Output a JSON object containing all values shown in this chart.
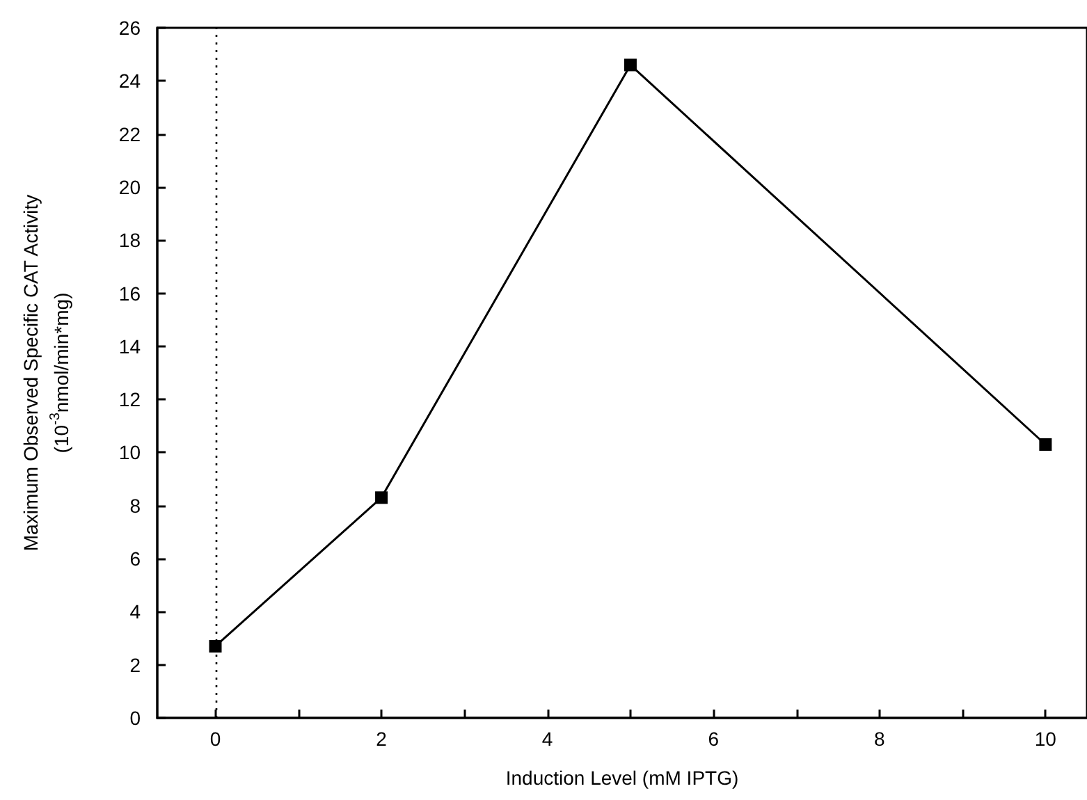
{
  "chart_data": {
    "type": "line",
    "xlabel": "Induction Level (mM IPTG)",
    "ylabel": "Maximum Observed Specific CAT Activity\n(10$^{-3}$nmol/min*mg)",
    "x": [
      0,
      2,
      5,
      10
    ],
    "series": [
      {
        "color": "#000000",
        "values": [
          2.7,
          8.3,
          24.6,
          10.3
        ]
      }
    ],
    "xlim": [
      -0.7,
      10.5
    ],
    "xticks": [
      0,
      {
        "value": 1,
        "label": null
      },
      2,
      {
        "value": 3,
        "label": null
      },
      4,
      {
        "value": 5,
        "label": null
      },
      6,
      {
        "value": 7,
        "label": null
      },
      8,
      {
        "value": 9,
        "label": null
      },
      10
    ],
    "ylim": [
      0,
      26
    ],
    "yticks": [
      0,
      2,
      4,
      6,
      8,
      10,
      12,
      14,
      16,
      18,
      20,
      22,
      24,
      26
    ],
    "ref_lines": [
      {
        "axis": "x",
        "value": 0,
        "line_style": "dotted",
        "color": "#000000"
      }
    ],
    "marker": "square",
    "line_style": "solid"
  }
}
